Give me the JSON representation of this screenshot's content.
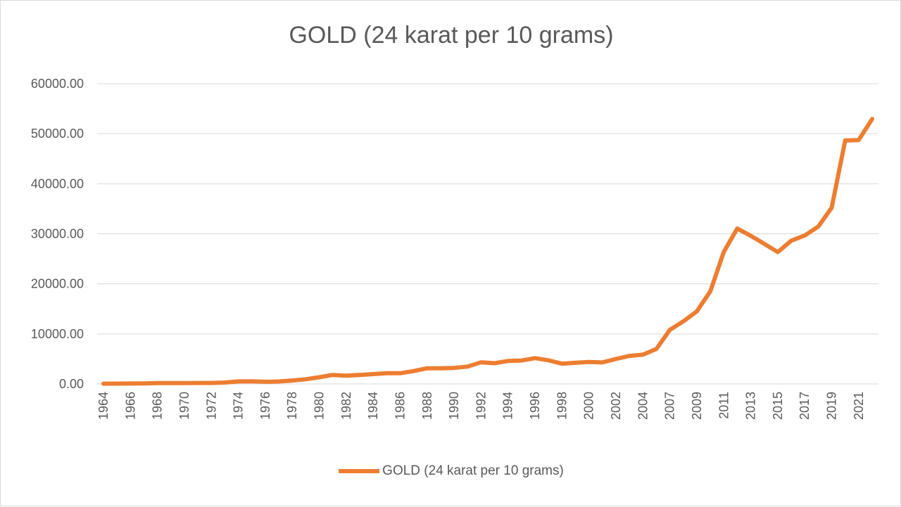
{
  "chart_data": {
    "type": "line",
    "title": "GOLD (24 karat per 10 grams)",
    "xlabel": "",
    "ylabel": "",
    "ylim": [
      0,
      60000
    ],
    "y_ticks": [
      "0.00",
      "10000.00",
      "20000.00",
      "30000.00",
      "40000.00",
      "50000.00",
      "60000.00"
    ],
    "x_tick_labels": [
      "1964",
      "1966",
      "1968",
      "1970",
      "1972",
      "1974",
      "1976",
      "1978",
      "1980",
      "1982",
      "1984",
      "1986",
      "1988",
      "1990",
      "1992",
      "1994",
      "1996",
      "1998",
      "2000",
      "2002",
      "2004",
      "2007",
      "2009",
      "2011",
      "2013",
      "2015",
      "2017",
      "2019",
      "2021"
    ],
    "x": [
      "1964",
      "1965",
      "1966",
      "1967",
      "1968",
      "1969",
      "1970",
      "1971",
      "1972",
      "1973",
      "1974",
      "1975",
      "1976",
      "1977",
      "1978",
      "1979",
      "1980",
      "1981",
      "1982",
      "1983",
      "1984",
      "1985",
      "1986",
      "1987",
      "1988",
      "1989",
      "1990",
      "1991",
      "1992",
      "1993",
      "1994",
      "1995",
      "1996",
      "1997",
      "1998",
      "1999",
      "2000",
      "2001",
      "2002",
      "2003",
      "2004",
      "2005",
      "2007",
      "2008",
      "2009",
      "2010",
      "2011",
      "2012",
      "2013",
      "2014",
      "2015",
      "2016",
      "2017",
      "2018",
      "2019",
      "2020",
      "2021",
      "2022"
    ],
    "series": [
      {
        "name": "GOLD (24 karat per 10 grams)",
        "color": "#ed7d31",
        "values": [
          63,
          72,
          84,
          103,
          162,
          176,
          184,
          193,
          202,
          278,
          506,
          540,
          432,
          486,
          685,
          937,
          1330,
          1800,
          1645,
          1800,
          1970,
          2130,
          2140,
          2570,
          3130,
          3140,
          3200,
          3466,
          4334,
          4140,
          4598,
          4680,
          5160,
          4725,
          4045,
          4234,
          4400,
          4300,
          4990,
          5600,
          5850,
          7000,
          10800,
          12500,
          14500,
          18500,
          26400,
          31050,
          29600,
          28006,
          26343,
          28623,
          29667,
          31438,
          35220,
          48651,
          48720,
          52950
        ]
      }
    ],
    "legend": {
      "position": "bottom",
      "label": "GOLD (24 karat per 10 grams)"
    }
  }
}
